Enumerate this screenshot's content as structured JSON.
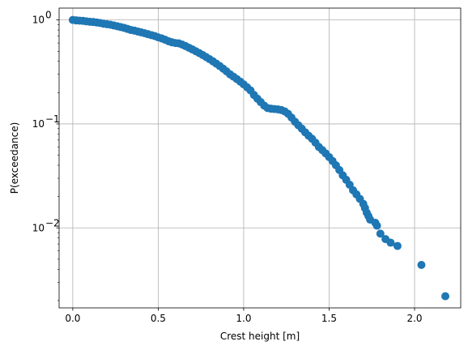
{
  "chart_data": {
    "type": "scatter",
    "title": "",
    "xlabel": "Crest height [m]",
    "ylabel": "P(exceedance)",
    "xlim": [
      -0.08,
      2.27
    ],
    "ylim": [
      0.0017,
      1.3
    ],
    "y_scale": "log",
    "grid": true,
    "marker_color": "#1f77b4",
    "x_ticks": [
      {
        "value": 0.0,
        "label": "0.0"
      },
      {
        "value": 0.5,
        "label": "0.5"
      },
      {
        "value": 1.0,
        "label": "1.0"
      },
      {
        "value": 1.5,
        "label": "1.5"
      },
      {
        "value": 2.0,
        "label": "2.0"
      }
    ],
    "y_ticks": [
      {
        "value": 1,
        "base": "10",
        "exp": "0"
      },
      {
        "value": 0.1,
        "base": "10",
        "exp": "−1"
      },
      {
        "value": 0.01,
        "base": "10",
        "exp": "−2"
      }
    ],
    "x": [
      0.0,
      0.02,
      0.04,
      0.06,
      0.08,
      0.1,
      0.12,
      0.14,
      0.16,
      0.18,
      0.2,
      0.22,
      0.24,
      0.26,
      0.28,
      0.3,
      0.32,
      0.34,
      0.36,
      0.38,
      0.4,
      0.42,
      0.44,
      0.46,
      0.48,
      0.5,
      0.52,
      0.54,
      0.56,
      0.58,
      0.6,
      0.62,
      0.64,
      0.66,
      0.68,
      0.7,
      0.72,
      0.74,
      0.76,
      0.78,
      0.8,
      0.82,
      0.84,
      0.86,
      0.88,
      0.9,
      0.92,
      0.94,
      0.96,
      0.98,
      1.0,
      1.02,
      1.04,
      1.06,
      1.08,
      1.1,
      1.12,
      1.14,
      1.16,
      1.18,
      1.2,
      1.22,
      1.24,
      1.26,
      1.28,
      1.3,
      1.32,
      1.34,
      1.36,
      1.38,
      1.4,
      1.42,
      1.44,
      1.46,
      1.48,
      1.5,
      1.52,
      1.54,
      1.56,
      1.58,
      1.6,
      1.62,
      1.64,
      1.66,
      1.68,
      1.7,
      1.71,
      1.72,
      1.73,
      1.74,
      1.77,
      1.78,
      1.8,
      1.83,
      1.86,
      1.9,
      2.04,
      2.18
    ],
    "y": [
      1.0,
      0.99,
      0.985,
      0.98,
      0.97,
      0.96,
      0.955,
      0.945,
      0.935,
      0.92,
      0.91,
      0.9,
      0.885,
      0.87,
      0.855,
      0.84,
      0.82,
      0.8,
      0.79,
      0.775,
      0.76,
      0.745,
      0.73,
      0.715,
      0.7,
      0.68,
      0.665,
      0.645,
      0.625,
      0.61,
      0.6,
      0.595,
      0.58,
      0.56,
      0.54,
      0.52,
      0.5,
      0.48,
      0.46,
      0.44,
      0.42,
      0.4,
      0.38,
      0.36,
      0.34,
      0.32,
      0.3,
      0.285,
      0.27,
      0.255,
      0.24,
      0.225,
      0.21,
      0.19,
      0.175,
      0.162,
      0.15,
      0.142,
      0.14,
      0.139,
      0.138,
      0.136,
      0.132,
      0.125,
      0.115,
      0.105,
      0.097,
      0.09,
      0.083,
      0.077,
      0.072,
      0.066,
      0.06,
      0.056,
      0.052,
      0.048,
      0.044,
      0.04,
      0.036,
      0.032,
      0.029,
      0.026,
      0.023,
      0.021,
      0.019,
      0.017,
      0.0155,
      0.014,
      0.013,
      0.012,
      0.0112,
      0.0105,
      0.0088,
      0.0078,
      0.0072,
      0.0067,
      0.0044,
      0.0022
    ]
  }
}
